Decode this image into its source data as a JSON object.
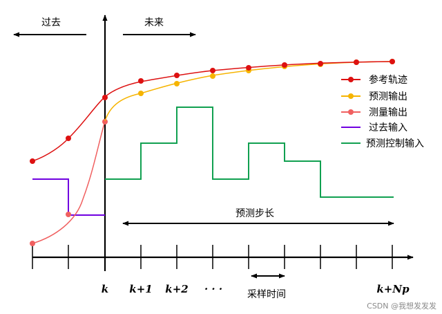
{
  "labels": {
    "past": "过去",
    "future": "未来",
    "prediction_horizon": "预测步长",
    "sampling_time": "采样时间",
    "watermark": "CSDN @我想发发发"
  },
  "ticks": {
    "k": "k",
    "k1": "k+1",
    "k2": "k+2",
    "dots": "· · ·",
    "knp": "k+Np"
  },
  "legend": [
    {
      "label": "参考轨迹",
      "color": "#dd1111",
      "marker": true
    },
    {
      "label": "预测输出",
      "color": "#f6b400",
      "marker": true
    },
    {
      "label": "测量输出",
      "color": "#f06060",
      "marker": true
    },
    {
      "label": "过去输入",
      "color": "#7000e0",
      "marker": false
    },
    {
      "label": "预测控制输入",
      "color": "#10a050",
      "marker": false
    }
  ],
  "colors": {
    "reference": "#dd1111",
    "predicted_output": "#f6b400",
    "measured_output": "#f06060",
    "past_input": "#7000e0",
    "predicted_input": "#10a050",
    "axis": "#000000"
  }
}
